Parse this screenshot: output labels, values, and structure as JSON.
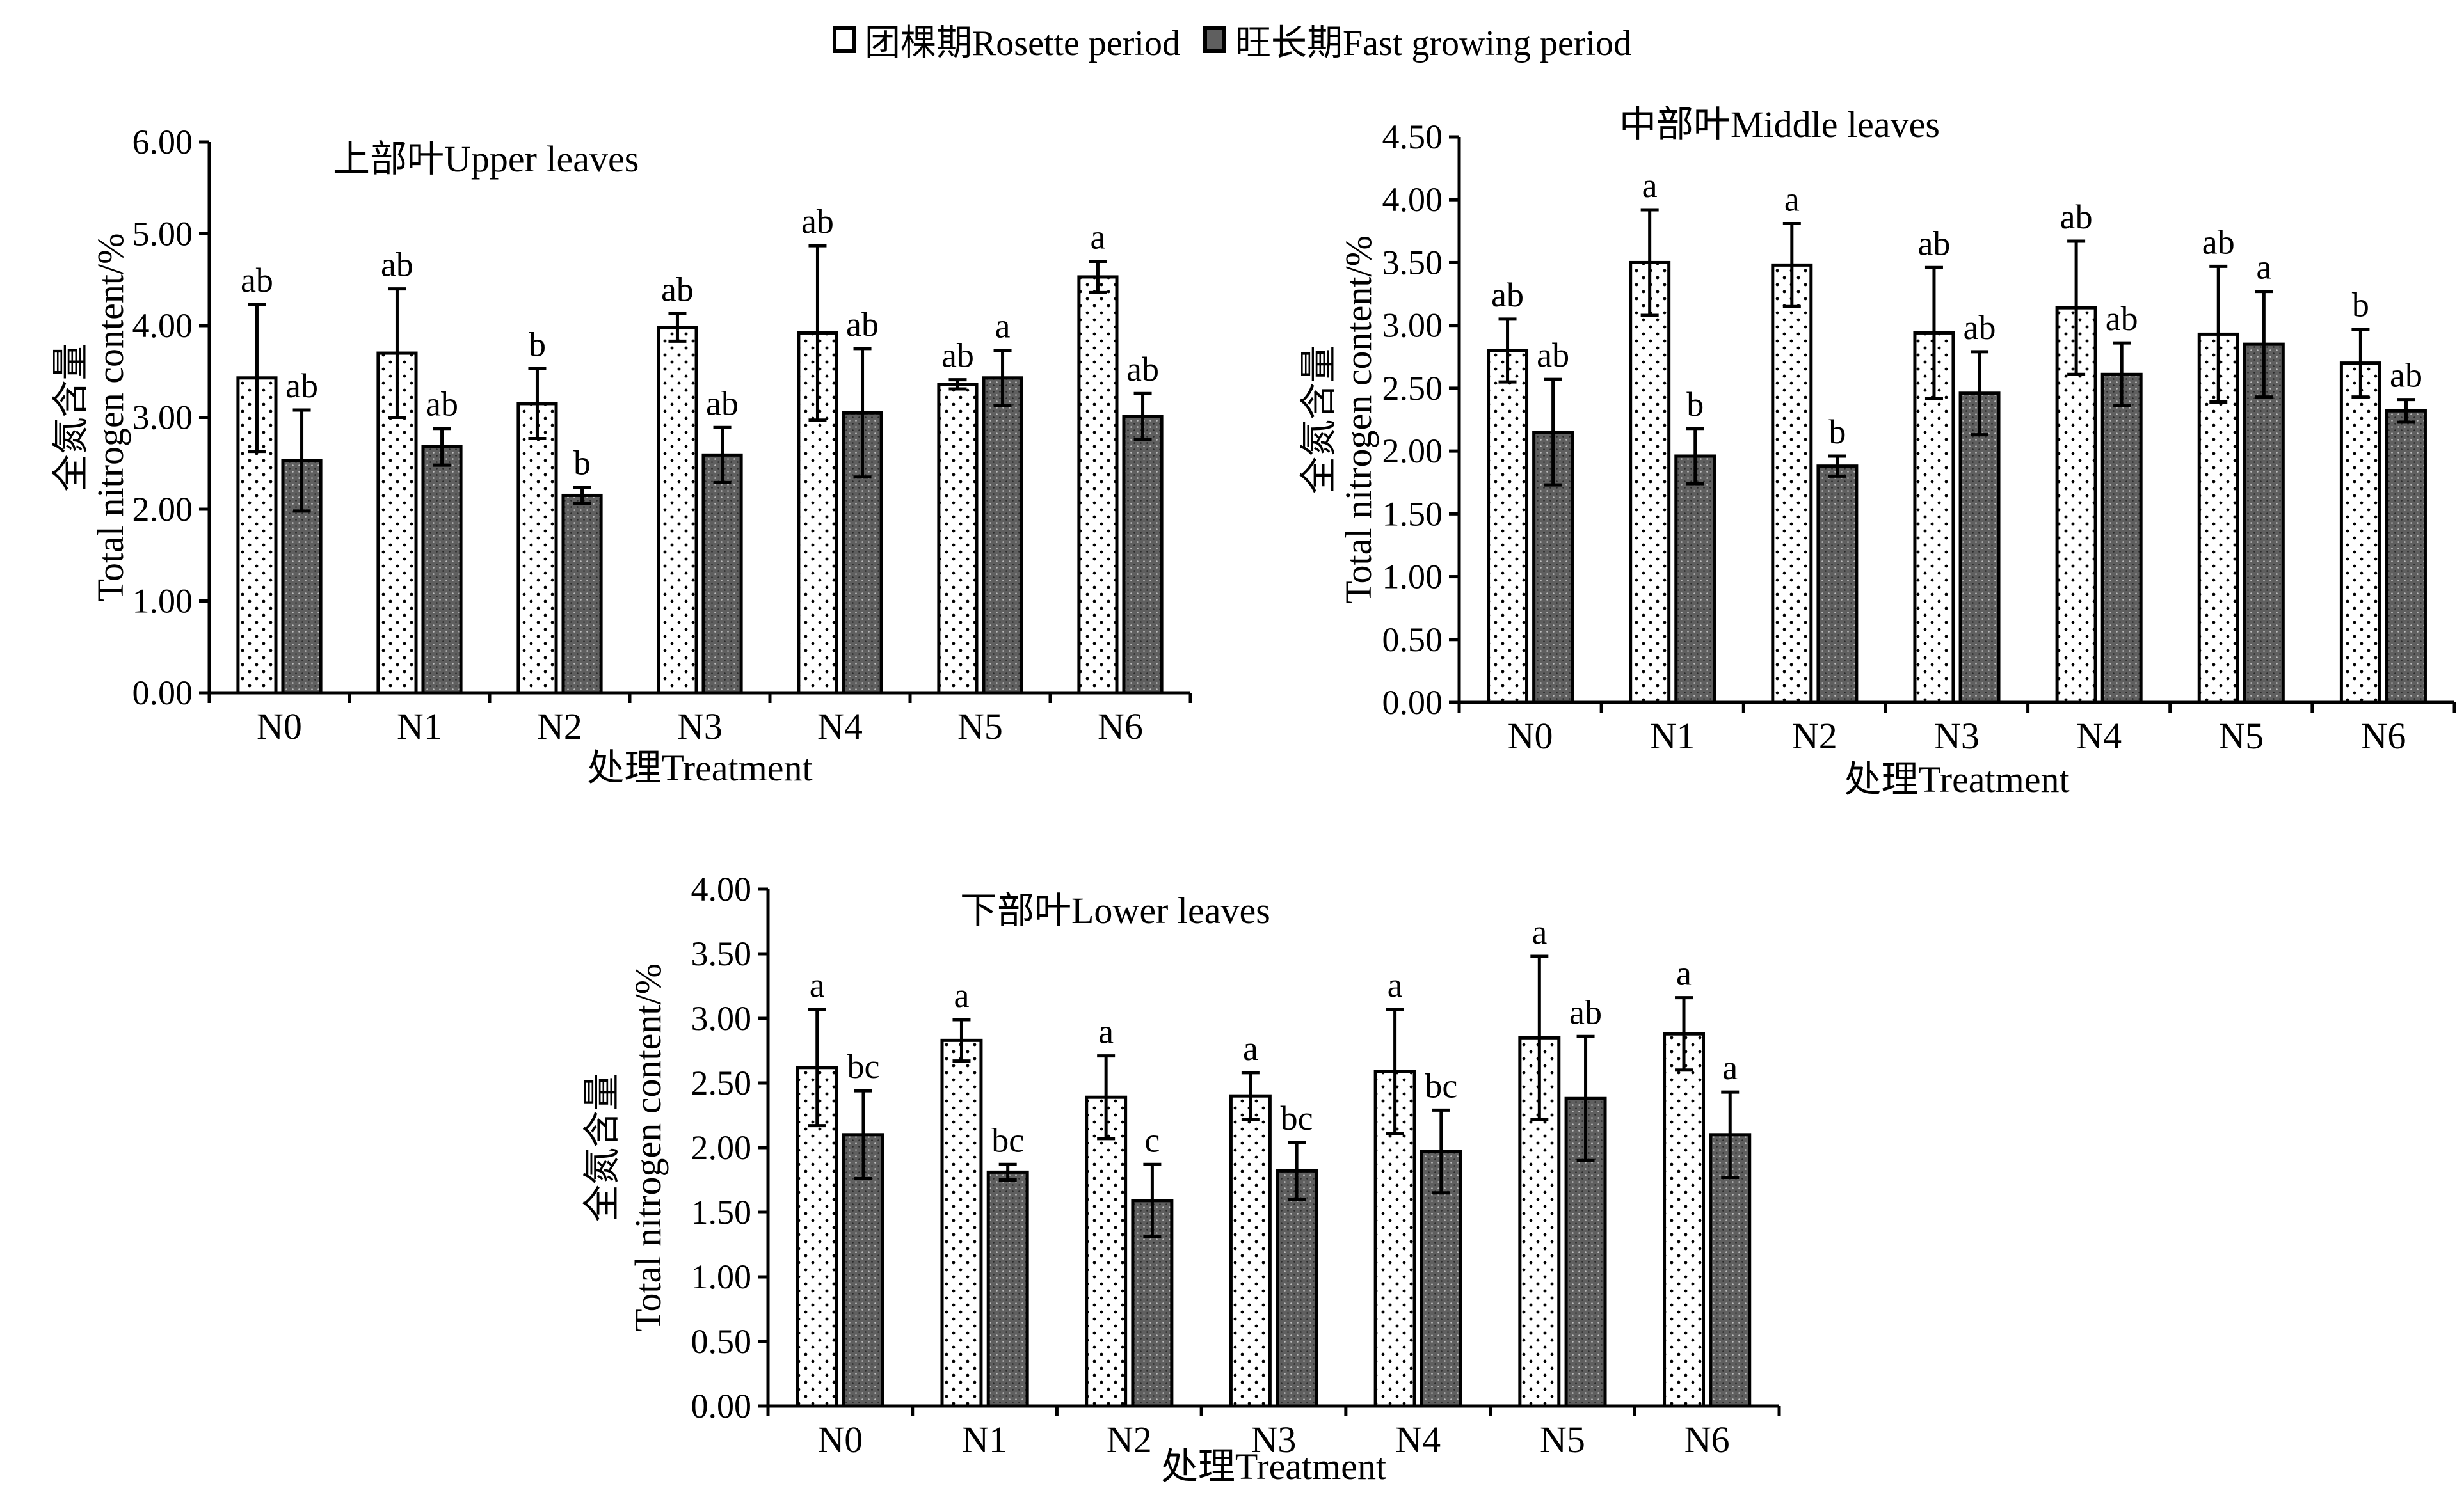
{
  "legend": {
    "rosette": "团棵期Rosette period",
    "fast": "旺长期Fast growing period"
  },
  "colors": {
    "rosette_fill": "#ffffff",
    "fast_fill": "#5f5f5f",
    "axis": "#000000"
  },
  "chart_data": [
    {
      "type": "bar",
      "title": "上部叶Upper leaves",
      "xlabel": "处理Treatment",
      "ylabel_cn": "全氮含量",
      "ylabel": "Total nitrogen content/%",
      "categories": [
        "N0",
        "N1",
        "N2",
        "N3",
        "N4",
        "N5",
        "N6"
      ],
      "ylim": [
        0,
        6
      ],
      "yticks": [
        "0.00",
        "1.00",
        "2.00",
        "3.00",
        "4.00",
        "5.00",
        "6.00"
      ],
      "series": [
        {
          "name": "团棵期Rosette period",
          "values": [
            3.43,
            3.7,
            3.15,
            3.98,
            3.92,
            3.36,
            4.53
          ],
          "errors": [
            0.8,
            0.7,
            0.38,
            0.15,
            0.95,
            0.05,
            0.17
          ],
          "letters": [
            "ab",
            "ab",
            "b",
            "ab",
            "ab",
            "ab",
            "a"
          ]
        },
        {
          "name": "旺长期Fast growing period",
          "values": [
            2.53,
            2.68,
            2.15,
            2.59,
            3.05,
            3.43,
            3.01
          ],
          "errors": [
            0.55,
            0.2,
            0.09,
            0.3,
            0.7,
            0.3,
            0.25
          ],
          "letters": [
            "ab",
            "ab",
            "b",
            "ab",
            "ab",
            "a",
            "ab"
          ]
        }
      ]
    },
    {
      "type": "bar",
      "title": "中部叶Middle leaves",
      "xlabel": "处理Treatment",
      "ylabel_cn": "全氮含量",
      "ylabel": "Total nitrogen content/%",
      "categories": [
        "N0",
        "N1",
        "N2",
        "N3",
        "N4",
        "N5",
        "N6"
      ],
      "ylim": [
        0,
        4.5
      ],
      "yticks": [
        "0.00",
        "0.50",
        "1.00",
        "1.50",
        "2.00",
        "2.50",
        "3.00",
        "3.50",
        "4.00",
        "4.50"
      ],
      "series": [
        {
          "name": "团棵期Rosette period",
          "values": [
            2.8,
            3.5,
            3.48,
            2.94,
            3.14,
            2.93,
            2.7
          ],
          "errors": [
            0.25,
            0.42,
            0.33,
            0.52,
            0.53,
            0.54,
            0.27
          ],
          "letters": [
            "ab",
            "a",
            "a",
            "ab",
            "ab",
            "ab",
            "b"
          ]
        },
        {
          "name": "旺长期Fast growing period",
          "values": [
            2.15,
            1.96,
            1.88,
            2.46,
            2.61,
            2.85,
            2.32
          ],
          "errors": [
            0.42,
            0.22,
            0.08,
            0.33,
            0.25,
            0.42,
            0.09
          ],
          "letters": [
            "ab",
            "b",
            "b",
            "ab",
            "ab",
            "a",
            "ab"
          ]
        }
      ]
    },
    {
      "type": "bar",
      "title": "下部叶Lower leaves",
      "xlabel": "处理Treatment",
      "ylabel_cn": "全氮含量",
      "ylabel": "Total nitrogen content/%",
      "categories": [
        "N0",
        "N1",
        "N2",
        "N3",
        "N4",
        "N5",
        "N6"
      ],
      "ylim": [
        0,
        4
      ],
      "yticks": [
        "0.00",
        "0.50",
        "1.00",
        "1.50",
        "2.00",
        "2.50",
        "3.00",
        "3.50",
        "4.00"
      ],
      "series": [
        {
          "name": "团棵期Rosette period",
          "values": [
            2.62,
            2.83,
            2.39,
            2.4,
            2.59,
            2.85,
            2.88
          ],
          "errors": [
            0.45,
            0.16,
            0.32,
            0.18,
            0.48,
            0.63,
            0.28
          ],
          "letters": [
            "a",
            "a",
            "a",
            "a",
            "a",
            "a",
            "a"
          ]
        },
        {
          "name": "旺长期Fast growing period",
          "values": [
            2.1,
            1.81,
            1.59,
            1.82,
            1.97,
            2.38,
            2.1
          ],
          "errors": [
            0.34,
            0.06,
            0.28,
            0.22,
            0.32,
            0.48,
            0.33
          ],
          "letters": [
            "bc",
            "bc",
            "c",
            "bc",
            "bc",
            "ab",
            "a"
          ]
        }
      ]
    }
  ]
}
